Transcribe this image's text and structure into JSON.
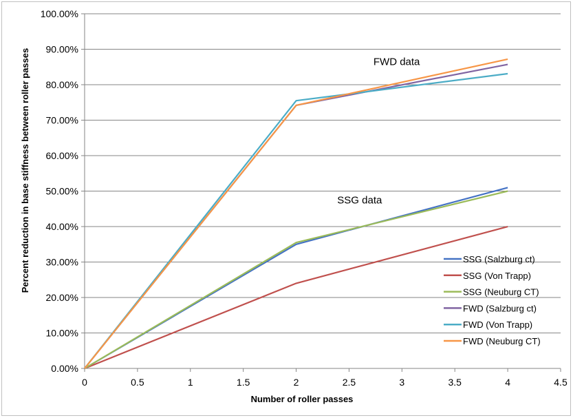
{
  "chart_data": {
    "type": "line",
    "xlabel": "Number of roller passes",
    "ylabel": "Percent reduction in base stiffness between roller passes",
    "xlim": [
      0,
      4.5
    ],
    "ylim": [
      0,
      1
    ],
    "x_ticks": [
      "0",
      "0.5",
      "1",
      "1.5",
      "2",
      "2.5",
      "3",
      "3.5",
      "4",
      "4.5"
    ],
    "y_ticks": [
      "0.00%",
      "10.00%",
      "20.00%",
      "30.00%",
      "40.00%",
      "50.00%",
      "60.00%",
      "70.00%",
      "80.00%",
      "90.00%",
      "100.00%"
    ],
    "grid": "horizontal",
    "legend_position": "bottom-right",
    "annotations": [
      {
        "text": "FWD data",
        "x": 2.95,
        "y": 0.855
      },
      {
        "text": "SSG data",
        "x": 2.6,
        "y": 0.465
      }
    ],
    "x": [
      0,
      2,
      4
    ],
    "series": [
      {
        "name": "SSG (Salzburg ct)",
        "color": "#4472c4",
        "values": [
          0,
          0.35,
          0.51
        ]
      },
      {
        "name": "SSG (Von Trapp)",
        "color": "#c0504d",
        "values": [
          0,
          0.24,
          0.4
        ]
      },
      {
        "name": "SSG (Neuburg CT)",
        "color": "#9bbb59",
        "values": [
          0,
          0.355,
          0.5
        ]
      },
      {
        "name": "FWD (Salzburg ct)",
        "color": "#8064a2",
        "values": [
          0,
          0.742,
          0.857
        ]
      },
      {
        "name": "FWD (Von Trapp)",
        "color": "#4bacc6",
        "values": [
          0,
          0.755,
          0.831
        ]
      },
      {
        "name": "FWD (Neuburg CT)",
        "color": "#f79646",
        "values": [
          0,
          0.742,
          0.872
        ]
      }
    ]
  }
}
